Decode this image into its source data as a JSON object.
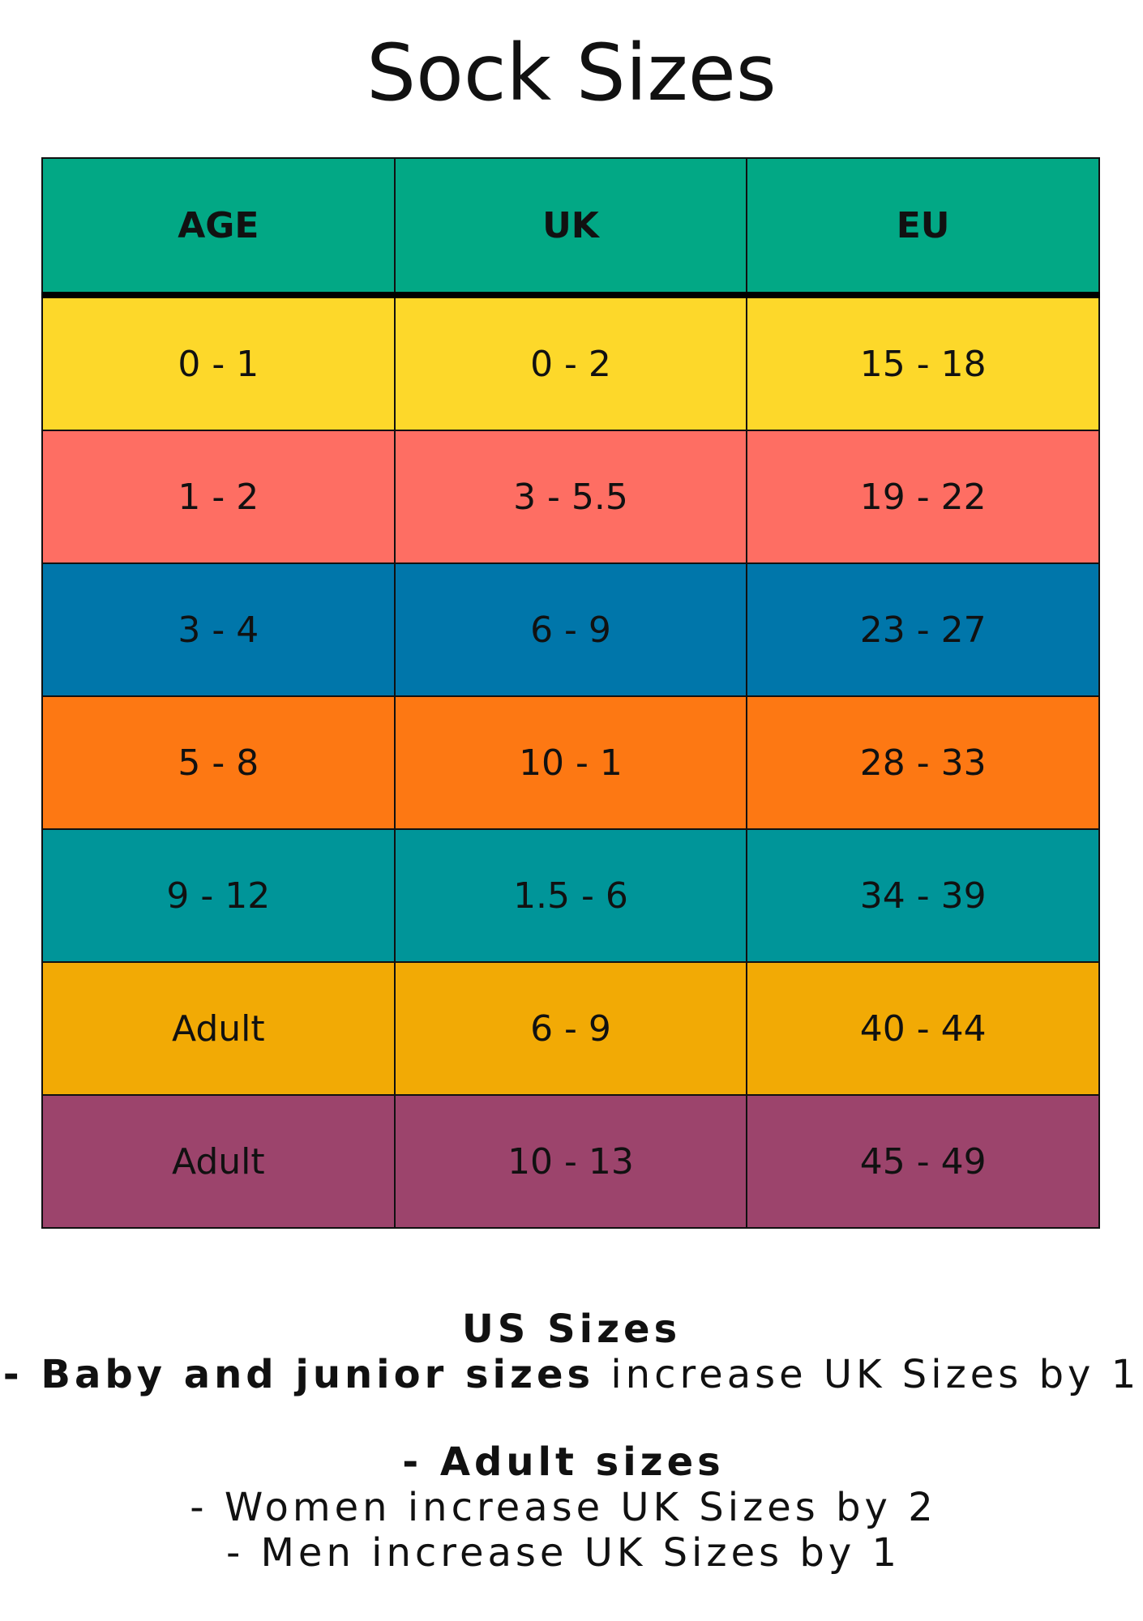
{
  "title": "Sock Sizes",
  "table": {
    "headers": [
      "AGE",
      "UK",
      "EU"
    ],
    "rows": [
      [
        "0 - 1",
        "0 - 2",
        "15 - 18"
      ],
      [
        "1 - 2",
        "3 - 5.5",
        "19 - 22"
      ],
      [
        "3 - 4",
        "6 - 9",
        "23 - 27"
      ],
      [
        "5 - 8",
        "10 - 1",
        "28 - 33"
      ],
      [
        "9 - 12",
        "1.5 - 6",
        "34 - 39"
      ],
      [
        "Adult",
        "6 - 9",
        "40 - 44"
      ],
      [
        "Adult",
        "10 - 13",
        "45 - 49"
      ]
    ]
  },
  "notes": {
    "heading": "US Sizes",
    "junior": {
      "bold": "- Baby and junior sizes",
      "text": "increase UK Sizes by 1"
    },
    "adult_heading": "- Adult sizes",
    "adult": [
      "- Women increase UK Sizes by 2",
      "- Men increase UK Sizes by 1"
    ]
  }
}
